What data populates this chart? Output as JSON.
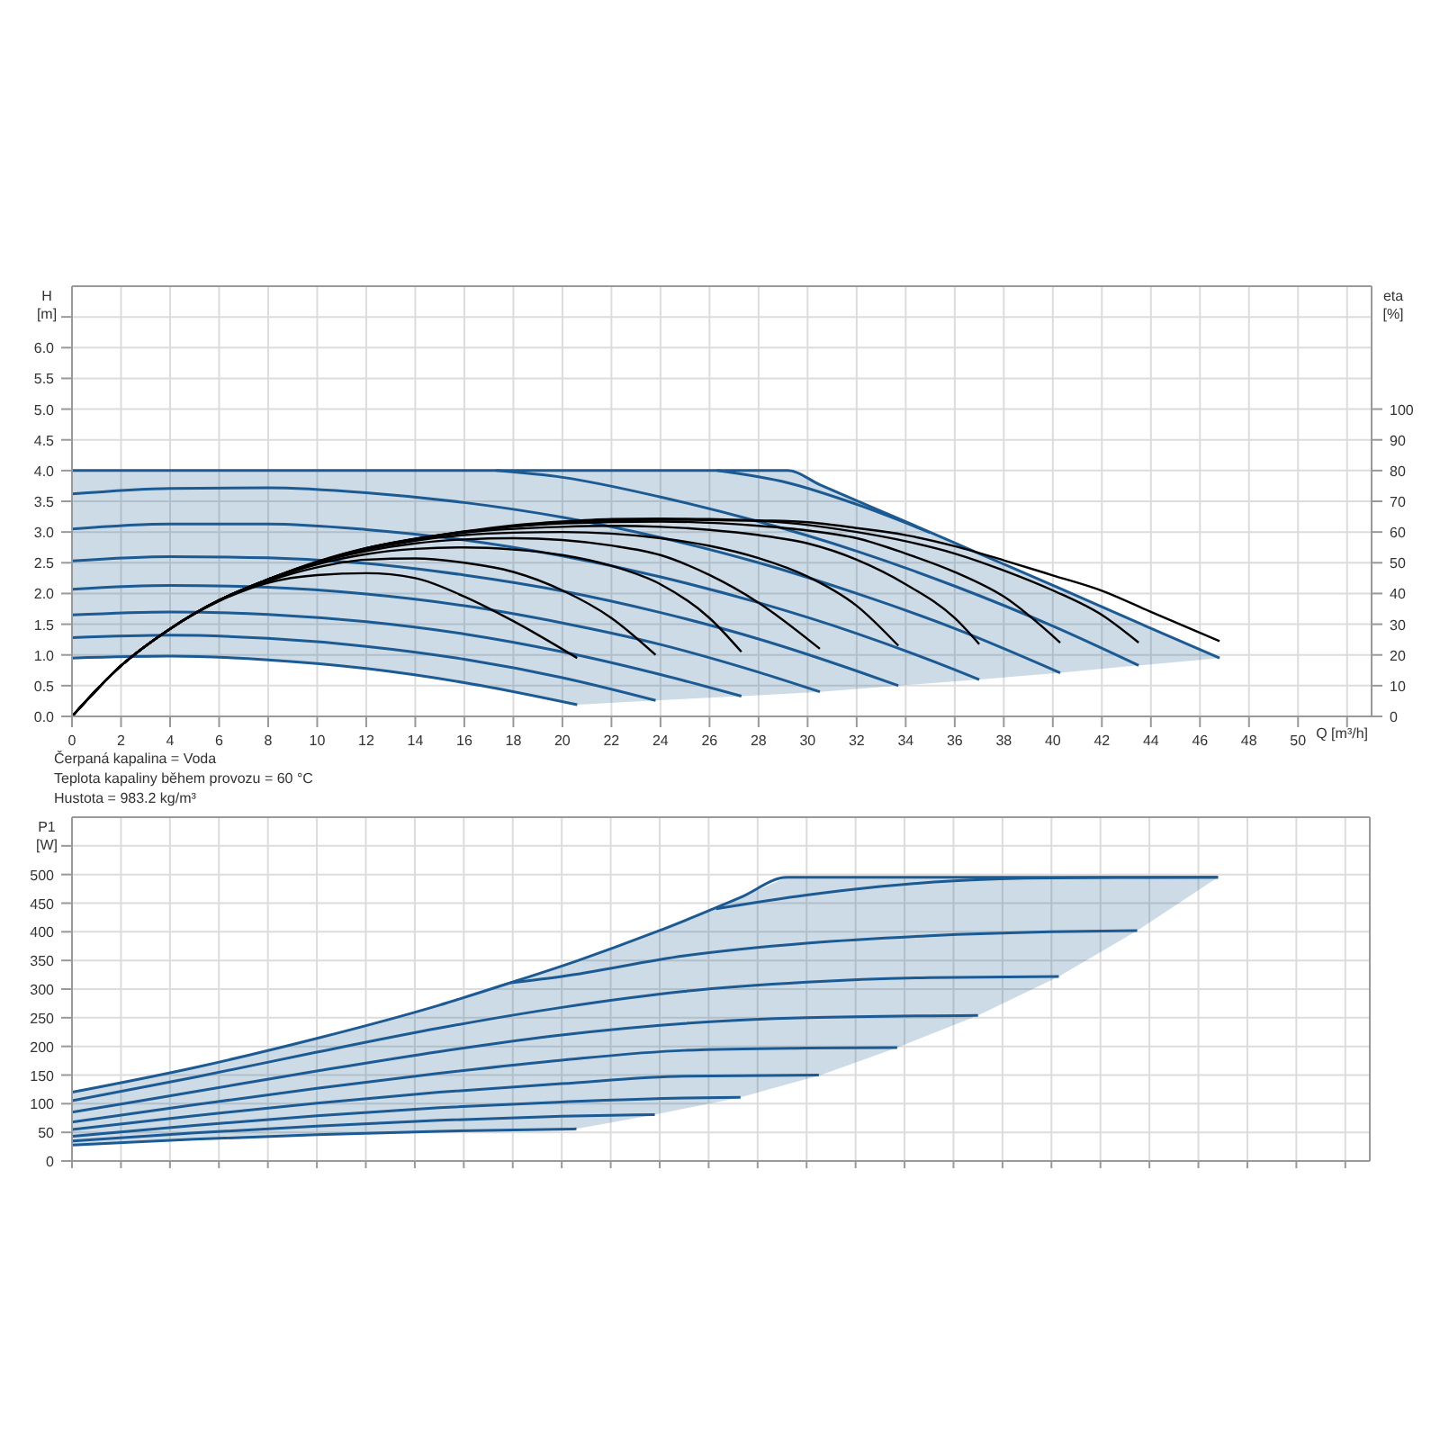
{
  "chart_data": [
    {
      "type": "line",
      "xlabel": "Q [m³/h]",
      "ylabel": "H [m]",
      "y2label": "eta [%]",
      "annotations": [
        "Čerpaná kapalina = Voda",
        "Teplota kapaliny během provozu = 60 °C",
        "Hustota = 983.2 kg/m³"
      ],
      "xlim": [
        0,
        53
      ],
      "xticks": [
        0,
        2,
        4,
        6,
        8,
        10,
        12,
        14,
        16,
        18,
        20,
        22,
        24,
        26,
        28,
        30,
        32,
        34,
        36,
        38,
        40,
        42,
        44,
        46,
        48,
        50,
        {
          "value": 52,
          "label": null
        }
      ],
      "ylim": [
        0,
        7
      ],
      "yticks": [
        {
          "value": 0,
          "label": "0.0"
        },
        {
          "value": 0.5,
          "label": "0.5"
        },
        {
          "value": 1,
          "label": "1.0"
        },
        {
          "value": 1.5,
          "label": "1.5"
        },
        {
          "value": 2,
          "label": "2.0"
        },
        {
          "value": 2.5,
          "label": "2.5"
        },
        {
          "value": 3,
          "label": "3.0"
        },
        {
          "value": 3.5,
          "label": "3.5"
        },
        {
          "value": 4,
          "label": "4.0"
        },
        {
          "value": 4.5,
          "label": "4.5"
        },
        {
          "value": 5,
          "label": "5.0"
        },
        {
          "value": 5.5,
          "label": "5.5"
        },
        {
          "value": 6,
          "label": "6.0"
        },
        {
          "value": 6.5,
          "label": null
        }
      ],
      "y2lim": [
        0,
        140
      ],
      "y2ticks": [
        0,
        10,
        20,
        30,
        40,
        50,
        60,
        70,
        80,
        90,
        100
      ],
      "grid": true,
      "series": [
        {
          "color": "#1b5a93",
          "x": [
            0,
            4,
            8,
            12,
            16,
            20.6,
            23.8,
            27.3,
            29.2,
            30.5,
            33.7,
            37,
            40.3,
            43.5,
            46.8
          ],
          "values": [
            4,
            4,
            4,
            4,
            4,
            4,
            4,
            4,
            4,
            3.77,
            3.22,
            2.65,
            2.08,
            1.52,
            0.95
          ],
          "lower": [
            0.95,
            0.98,
            0.92,
            0.78,
            0.55,
            0.19,
            0.26,
            0.33,
            0.37,
            0.4,
            0.5,
            0.6,
            0.71,
            0.83,
            0.95
          ],
          "upper": [
            4,
            4,
            4,
            4,
            4,
            4,
            4,
            4,
            4,
            3.77,
            3.22,
            2.65,
            2.08,
            1.52,
            0.95
          ]
        },
        {
          "color": "#1b5a93",
          "x": [
            0,
            4,
            8,
            12,
            16,
            20.6
          ],
          "values": [
            0.95,
            0.98,
            0.92,
            0.78,
            0.55,
            0.19
          ]
        },
        {
          "color": "#1b5a93",
          "x": [
            0,
            4,
            8,
            12,
            16,
            20,
            23.8
          ],
          "values": [
            1.28,
            1.32,
            1.27,
            1.14,
            0.93,
            0.63,
            0.26
          ]
        },
        {
          "color": "#1b5a93",
          "x": [
            0,
            4,
            8,
            12,
            16,
            20,
            24,
            27.3
          ],
          "values": [
            1.65,
            1.7,
            1.66,
            1.54,
            1.34,
            1.05,
            0.68,
            0.33
          ]
        },
        {
          "color": "#1b5a93",
          "x": [
            0,
            4,
            8,
            12,
            16,
            20,
            24,
            28,
            30.5
          ],
          "values": [
            2.07,
            2.13,
            2.1,
            1.99,
            1.8,
            1.52,
            1.17,
            0.72,
            0.4
          ]
        },
        {
          "color": "#1b5a93",
          "x": [
            0,
            4,
            8,
            12,
            16,
            20,
            24,
            28,
            32,
            33.7
          ],
          "values": [
            2.53,
            2.6,
            2.58,
            2.49,
            2.3,
            2.04,
            1.69,
            1.26,
            0.74,
            0.5
          ]
        },
        {
          "color": "#1b5a93",
          "x": [
            0,
            4,
            8,
            12,
            16,
            20,
            24,
            28,
            32,
            36,
            37
          ],
          "values": [
            3.05,
            3.13,
            3.13,
            3.04,
            2.87,
            2.61,
            2.27,
            1.85,
            1.35,
            0.76,
            0.6
          ]
        },
        {
          "color": "#1b5a93",
          "x": [
            0,
            4,
            8,
            12,
            16,
            20,
            24,
            28,
            32,
            36,
            40.3
          ],
          "values": [
            3.62,
            3.71,
            3.72,
            3.64,
            3.48,
            3.24,
            2.91,
            2.5,
            2.0,
            1.43,
            0.71
          ]
        },
        {
          "color": "#1b5a93",
          "x": [
            17.3,
            20,
            24,
            28,
            32,
            36,
            40,
            43.5
          ],
          "values": [
            4.0,
            3.89,
            3.57,
            3.17,
            2.69,
            2.12,
            1.47,
            0.83
          ]
        },
        {
          "color": "#1b5a93",
          "x": [
            26.3,
            29.2,
            32,
            35
          ],
          "values": [
            4.0,
            3.8,
            3.45,
            2.99
          ]
        },
        {
          "color": "#000000",
          "axis": "y2",
          "x": [
            0,
            2,
            4,
            6,
            8,
            10,
            12,
            14,
            16,
            18,
            20.6
          ],
          "values": [
            0,
            16.5,
            28.5,
            37.5,
            43.5,
            46,
            46.6,
            45,
            39,
            31,
            19
          ]
        },
        {
          "color": "#000000",
          "axis": "y2",
          "x": [
            0,
            2,
            4,
            6,
            8,
            10,
            12,
            14,
            16,
            18,
            20,
            22,
            23.8
          ],
          "values": [
            0,
            16.5,
            28.5,
            37.7,
            44,
            48.5,
            51,
            51.4,
            50,
            47,
            41,
            32,
            20
          ]
        },
        {
          "color": "#000000",
          "axis": "y2",
          "x": [
            0,
            2,
            4,
            6,
            8,
            10,
            12,
            14,
            16,
            18,
            20,
            22,
            24,
            26,
            27.3
          ],
          "values": [
            0,
            16.5,
            28.5,
            37.8,
            44.4,
            49.5,
            52.8,
            54.5,
            55,
            54.3,
            52.5,
            49,
            43,
            32,
            21
          ]
        },
        {
          "color": "#000000",
          "axis": "y2",
          "x": [
            0,
            2,
            4,
            6,
            8,
            10,
            12,
            14,
            16,
            18,
            20,
            22,
            24,
            26,
            28,
            30.5
          ],
          "values": [
            0,
            16.5,
            28.5,
            37.8,
            44.6,
            50,
            53.8,
            56.3,
            57.6,
            58,
            57.4,
            55.6,
            52.5,
            46,
            37,
            22
          ]
        },
        {
          "color": "#000000",
          "axis": "y2",
          "x": [
            0,
            2,
            4,
            6,
            8,
            10,
            12,
            14,
            16,
            18,
            20,
            22,
            24,
            26,
            28,
            30,
            32,
            33.7
          ],
          "values": [
            0,
            16.5,
            28.5,
            37.8,
            44.6,
            50.2,
            54.3,
            57.2,
            59,
            59.8,
            60,
            59.5,
            58,
            55.5,
            51.5,
            45.5,
            36,
            23
          ]
        },
        {
          "color": "#000000",
          "axis": "y2",
          "x": [
            0,
            2,
            4,
            6,
            8,
            12,
            16,
            20,
            22,
            24,
            26,
            28,
            30,
            32,
            34,
            36,
            37
          ],
          "values": [
            0,
            16.5,
            28.5,
            37.8,
            44.6,
            54.6,
            59.8,
            61.7,
            62,
            61.7,
            60.7,
            59,
            56.3,
            51,
            43,
            32,
            23.5
          ]
        },
        {
          "color": "#000000",
          "axis": "y2",
          "x": [
            0,
            2,
            4,
            6,
            8,
            12,
            16,
            20,
            24,
            28,
            30,
            32,
            34,
            36,
            38,
            40.3
          ],
          "values": [
            0,
            16.5,
            28.5,
            37.8,
            44.6,
            54.7,
            60,
            62.8,
            63.4,
            62,
            60.5,
            58,
            53,
            47,
            39,
            24
          ]
        },
        {
          "color": "#000000",
          "axis": "y2",
          "x": [
            0,
            2,
            4,
            6,
            8,
            12,
            16,
            20,
            24,
            28,
            32,
            34,
            36,
            38,
            40,
            42,
            43.5
          ],
          "values": [
            0,
            16.5,
            28.5,
            37.8,
            44.6,
            54.7,
            60.1,
            63,
            64,
            63.6,
            60,
            57,
            53,
            47.5,
            41,
            33,
            24
          ]
        },
        {
          "color": "#000000",
          "axis": "y2",
          "x": [
            0,
            2,
            4,
            6,
            8,
            10,
            12,
            14,
            16,
            18,
            20,
            22,
            24,
            26,
            28,
            30,
            32,
            34,
            36,
            38,
            40,
            42,
            44,
            46.8
          ],
          "values": [
            0,
            16.5,
            28.5,
            37.8,
            44.6,
            50.4,
            54.8,
            57.7,
            60.2,
            62.2,
            63.4,
            64.2,
            64.4,
            64.2,
            63.8,
            63.2,
            61.3,
            59,
            55.4,
            50.8,
            45.9,
            40.9,
            34,
            24.5
          ]
        }
      ]
    },
    {
      "type": "line",
      "ylabel": "P1 [W]",
      "tick_labels": "y",
      "xlim": [
        0,
        53
      ],
      "xticks": [
        0,
        2,
        4,
        6,
        8,
        10,
        12,
        14,
        16,
        18,
        20,
        22,
        24,
        26,
        28,
        30,
        32,
        34,
        36,
        38,
        40,
        42,
        44,
        46,
        48,
        50,
        {
          "value": 52,
          "label": null
        }
      ],
      "ylim": [
        0,
        600
      ],
      "yticks": [
        0,
        50,
        100,
        150,
        200,
        250,
        300,
        350,
        400,
        450,
        500,
        {
          "value": 550,
          "label": null
        }
      ],
      "grid": true,
      "series": [
        {
          "color": "#1b5a93",
          "x": [
            0,
            5,
            10,
            15,
            17.9,
            20.6,
            23.8,
            27.3,
            29.2,
            30.5,
            33.7,
            37,
            40.3,
            43.5,
            46.8
          ],
          "values": [
            120,
            163,
            214,
            272,
            311,
            349,
            399,
            460,
            495,
            495,
            495,
            495,
            495,
            495,
            495
          ],
          "lower": [
            28,
            38,
            46,
            52,
            54,
            56,
            81,
            111,
            134,
            149,
            198,
            254,
            322,
            402,
            495
          ],
          "upper": [
            120,
            163,
            214,
            272,
            311,
            349,
            399,
            460,
            495,
            495,
            495,
            495,
            495,
            495,
            495
          ]
        },
        {
          "color": "#1b5a93",
          "x": [
            0,
            5,
            10,
            15,
            20.6
          ],
          "values": [
            28,
            38,
            46,
            52,
            56
          ]
        },
        {
          "color": "#1b5a93",
          "x": [
            0,
            5,
            10,
            15,
            20,
            23.8
          ],
          "values": [
            35,
            49,
            61,
            71,
            78,
            81
          ]
        },
        {
          "color": "#1b5a93",
          "x": [
            0,
            5,
            10,
            15,
            20,
            25,
            27.3
          ],
          "values": [
            43,
            62,
            79,
            93,
            103,
            110,
            111
          ]
        },
        {
          "color": "#1b5a93",
          "x": [
            0,
            5,
            10,
            15,
            20,
            25,
            30.5
          ],
          "values": [
            55,
            79,
            101,
            120,
            135,
            148,
            150
          ]
        },
        {
          "color": "#1b5a93",
          "x": [
            0,
            5,
            10,
            15,
            20,
            25,
            30,
            33.7
          ],
          "values": [
            68,
            98,
            127,
            153,
            176,
            193,
            197,
            198
          ]
        },
        {
          "color": "#1b5a93",
          "x": [
            0,
            5,
            10,
            15,
            20,
            25,
            30,
            37
          ],
          "values": [
            85,
            121,
            157,
            191,
            220,
            240,
            250,
            254
          ]
        },
        {
          "color": "#1b5a93",
          "x": [
            0,
            5,
            10,
            15,
            20,
            25,
            30,
            35,
            40.3
          ],
          "values": [
            105,
            146,
            190,
            232,
            268,
            296,
            312,
            320,
            322
          ]
        },
        {
          "color": "#1b5a93",
          "x": [
            17.9,
            20,
            25,
            30,
            35,
            40,
            43.5
          ],
          "values": [
            311,
            322,
            358,
            380,
            393,
            400,
            402
          ]
        },
        {
          "color": "#1b5a93",
          "x": [
            26.3,
            30,
            33,
            36,
            40,
            46.8
          ],
          "values": [
            440,
            464,
            479,
            489,
            494,
            495
          ]
        }
      ]
    }
  ]
}
